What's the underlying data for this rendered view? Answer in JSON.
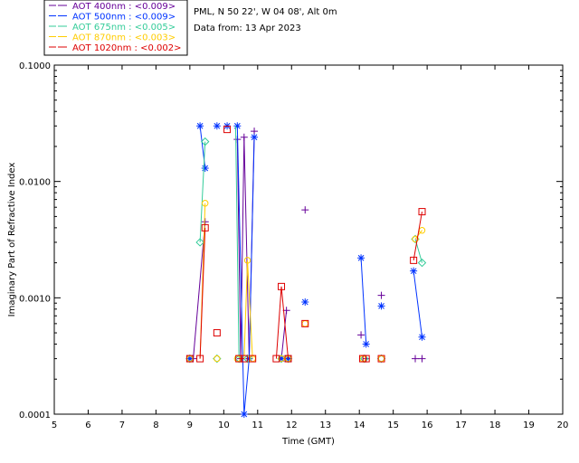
{
  "chart_data": {
    "type": "scatter",
    "title": "",
    "site_line": "PML, N 50 22', W 04 08', Alt 0m",
    "date_line": "Data from: 13 Apr 2023",
    "xlabel": "Time (GMT)",
    "ylabel": "Imaginary Part of Refractive Index",
    "xlim": [
      5,
      20
    ],
    "ylim": [
      0.0001,
      0.1
    ],
    "yscale": "log",
    "x_ticks": [
      "5",
      "6",
      "7",
      "8",
      "9",
      "10",
      "11",
      "12",
      "13",
      "14",
      "15",
      "16",
      "17",
      "18",
      "19",
      "20"
    ],
    "y_ticks": [
      {
        "value": 0.0001,
        "label": "0.0001"
      },
      {
        "value": 0.001,
        "label": "0.0010"
      },
      {
        "value": 0.01,
        "label": "0.0100"
      },
      {
        "value": 0.1,
        "label": "0.1000"
      }
    ],
    "legend_position": "top-left",
    "series": [
      {
        "name": "AOT 400nm : <0.009>",
        "color": "#660099",
        "marker": "plus",
        "points": [
          [
            9.1,
            0.0003
          ],
          [
            9.45,
            0.0045
          ],
          [
            10.4,
            0.023
          ],
          [
            10.5,
            0.0003
          ],
          [
            10.6,
            0.024
          ],
          [
            10.75,
            0.0003
          ],
          [
            10.9,
            0.027
          ],
          [
            11.85,
            0.00078
          ],
          [
            11.9,
            0.0003
          ],
          [
            12.4,
            0.0057
          ],
          [
            14.05,
            0.00048
          ],
          [
            14.2,
            0.0003
          ],
          [
            14.65,
            0.00105
          ],
          [
            15.65,
            0.0003
          ],
          [
            15.85,
            0.0003
          ]
        ],
        "segments": [
          [
            [
              9.45,
              0.0045
            ],
            [
              9.1,
              0.0003
            ]
          ],
          [
            [
              10.4,
              0.023
            ],
            [
              10.5,
              0.0003
            ]
          ],
          [
            [
              10.5,
              0.0003
            ],
            [
              10.6,
              0.024
            ]
          ],
          [
            [
              10.6,
              0.024
            ],
            [
              10.75,
              0.0003
            ]
          ],
          [
            [
              10.75,
              0.0003
            ],
            [
              10.9,
              0.027
            ]
          ],
          [
            [
              11.85,
              0.00078
            ],
            [
              11.7,
              0.0003
            ]
          ]
        ]
      },
      {
        "name": "AOT 500nm : <0.009>",
        "color": "#0033ff",
        "marker": "star",
        "points": [
          [
            9.0,
            0.0003
          ],
          [
            9.3,
            0.03
          ],
          [
            9.45,
            0.013
          ],
          [
            9.8,
            0.03
          ],
          [
            10.1,
            0.03
          ],
          [
            10.4,
            0.03
          ],
          [
            10.6,
            0.0001
          ],
          [
            10.75,
            0.0003
          ],
          [
            10.9,
            0.024
          ],
          [
            11.7,
            0.0003
          ],
          [
            11.9,
            0.0003
          ],
          [
            12.4,
            0.00092
          ],
          [
            14.05,
            0.0022
          ],
          [
            14.2,
            0.0004
          ],
          [
            14.65,
            0.00085
          ],
          [
            15.6,
            0.0017
          ],
          [
            15.85,
            0.00046
          ]
        ],
        "segments": [
          [
            [
              9.3,
              0.03
            ],
            [
              9.45,
              0.013
            ]
          ],
          [
            [
              10.4,
              0.03
            ],
            [
              10.6,
              0.0001
            ]
          ],
          [
            [
              10.6,
              0.0001
            ],
            [
              10.75,
              0.0003
            ]
          ],
          [
            [
              10.75,
              0.0003
            ],
            [
              10.9,
              0.024
            ]
          ],
          [
            [
              14.05,
              0.0022
            ],
            [
              14.2,
              0.0004
            ]
          ],
          [
            [
              15.6,
              0.0017
            ],
            [
              15.85,
              0.00046
            ]
          ]
        ]
      },
      {
        "name": "AOT 675nm : <0.005>",
        "color": "#33cc99",
        "marker": "diamond",
        "points": [
          [
            9.0,
            0.0003
          ],
          [
            9.3,
            0.003
          ],
          [
            9.45,
            0.022
          ],
          [
            9.8,
            0.0003
          ],
          [
            10.45,
            0.0003
          ],
          [
            10.7,
            0.0003
          ],
          [
            11.7,
            0.0003
          ],
          [
            11.9,
            0.0003
          ],
          [
            14.15,
            0.0003
          ],
          [
            14.65,
            0.0003
          ],
          [
            15.65,
            0.0032
          ],
          [
            15.85,
            0.002
          ]
        ],
        "segments": [
          [
            [
              9.3,
              0.003
            ],
            [
              9.45,
              0.022
            ]
          ],
          [
            [
              10.35,
              0.03
            ],
            [
              10.45,
              0.0003
            ]
          ],
          [
            [
              15.65,
              0.0032
            ],
            [
              15.85,
              0.002
            ]
          ]
        ]
      },
      {
        "name": "AOT 870nm : <0.003>",
        "color": "#ffcc00",
        "marker": "circle",
        "points": [
          [
            9.0,
            0.0003
          ],
          [
            9.45,
            0.0065
          ],
          [
            9.8,
            0.0003
          ],
          [
            10.4,
            0.0003
          ],
          [
            10.7,
            0.0021
          ],
          [
            10.85,
            0.0003
          ],
          [
            11.7,
            0.0003
          ],
          [
            11.9,
            0.0003
          ],
          [
            12.4,
            0.0006
          ],
          [
            14.1,
            0.0003
          ],
          [
            14.65,
            0.0003
          ],
          [
            15.65,
            0.0032
          ],
          [
            15.85,
            0.0038
          ]
        ],
        "segments": [
          [
            [
              9.3,
              0.0003
            ],
            [
              9.45,
              0.0065
            ]
          ],
          [
            [
              10.6,
              0.0003
            ],
            [
              10.7,
              0.0021
            ]
          ],
          [
            [
              10.7,
              0.0021
            ],
            [
              10.85,
              0.0003
            ]
          ],
          [
            [
              15.65,
              0.0032
            ],
            [
              15.85,
              0.0038
            ]
          ]
        ]
      },
      {
        "name": "AOT 1020nm : <0.002>",
        "color": "#dd0000",
        "marker": "square",
        "points": [
          [
            9.0,
            0.0003
          ],
          [
            9.3,
            0.0003
          ],
          [
            9.45,
            0.004
          ],
          [
            9.8,
            0.0005
          ],
          [
            10.1,
            0.028
          ],
          [
            10.45,
            0.0003
          ],
          [
            10.6,
            0.0003
          ],
          [
            10.85,
            0.0003
          ],
          [
            11.55,
            0.0003
          ],
          [
            11.7,
            0.00125
          ],
          [
            11.9,
            0.0003
          ],
          [
            12.4,
            0.0006
          ],
          [
            14.1,
            0.0003
          ],
          [
            14.2,
            0.0003
          ],
          [
            14.65,
            0.0003
          ],
          [
            15.6,
            0.0021
          ],
          [
            15.85,
            0.0055
          ]
        ],
        "segments": [
          [
            [
              9.3,
              0.0003
            ],
            [
              9.45,
              0.004
            ]
          ],
          [
            [
              10.45,
              0.0003
            ],
            [
              10.6,
              0.0003
            ]
          ],
          [
            [
              11.55,
              0.0003
            ],
            [
              11.7,
              0.00125
            ]
          ],
          [
            [
              11.7,
              0.00125
            ],
            [
              11.9,
              0.0003
            ]
          ],
          [
            [
              15.6,
              0.0021
            ],
            [
              15.85,
              0.0055
            ]
          ]
        ]
      }
    ]
  }
}
